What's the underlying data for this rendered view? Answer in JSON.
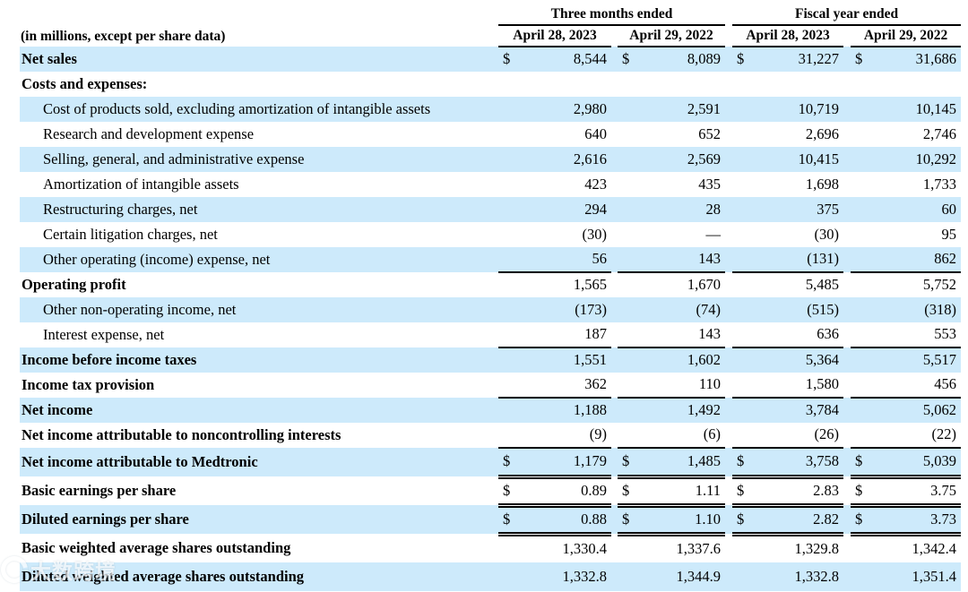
{
  "watermark": {
    "logo": "swirl-ring-icon",
    "text": "大数跨境"
  },
  "table": {
    "currency_symbol": "$",
    "units_note": "(in millions, except per share data)",
    "colors": {
      "stripe": "#cdeafb",
      "rule": "#000000",
      "text": "#000000"
    },
    "col_groups": [
      {
        "label": "Three months ended",
        "cols": [
          "April 28, 2023",
          "April 29, 2022"
        ]
      },
      {
        "label": "Fiscal year ended",
        "cols": [
          "April 28, 2023",
          "April 29, 2022"
        ]
      }
    ],
    "rows": [
      {
        "label": "Net sales",
        "bold": true,
        "indent": false,
        "shaded": true,
        "dollar": true,
        "rule": null,
        "values": [
          "8,544",
          "8,089",
          "31,227",
          "31,686"
        ]
      },
      {
        "label": "Costs and expenses:",
        "bold": true,
        "indent": false,
        "shaded": false,
        "dollar": false,
        "rule": null,
        "values": [
          "",
          "",
          "",
          ""
        ]
      },
      {
        "label": "Cost of products sold, excluding amortization of intangible assets",
        "bold": false,
        "indent": true,
        "shaded": true,
        "dollar": false,
        "rule": null,
        "values": [
          "2,980",
          "2,591",
          "10,719",
          "10,145"
        ]
      },
      {
        "label": "Research and development expense",
        "bold": false,
        "indent": true,
        "shaded": false,
        "dollar": false,
        "rule": null,
        "values": [
          "640",
          "652",
          "2,696",
          "2,746"
        ]
      },
      {
        "label": "Selling, general, and administrative expense",
        "bold": false,
        "indent": true,
        "shaded": true,
        "dollar": false,
        "rule": null,
        "values": [
          "2,616",
          "2,569",
          "10,415",
          "10,292"
        ]
      },
      {
        "label": "Amortization of intangible assets",
        "bold": false,
        "indent": true,
        "shaded": false,
        "dollar": false,
        "rule": null,
        "values": [
          "423",
          "435",
          "1,698",
          "1,733"
        ]
      },
      {
        "label": "Restructuring charges, net",
        "bold": false,
        "indent": true,
        "shaded": true,
        "dollar": false,
        "rule": null,
        "values": [
          "294",
          "28",
          "375",
          "60"
        ]
      },
      {
        "label": "Certain litigation charges, net",
        "bold": false,
        "indent": true,
        "shaded": false,
        "dollar": false,
        "rule": null,
        "values": [
          "(30)",
          "—",
          "(30)",
          "95"
        ]
      },
      {
        "label": "Other operating (income) expense, net",
        "bold": false,
        "indent": true,
        "shaded": true,
        "dollar": false,
        "rule": "single",
        "values": [
          "56",
          "143",
          "(131)",
          "862"
        ]
      },
      {
        "label": "Operating profit",
        "bold": true,
        "indent": false,
        "shaded": false,
        "dollar": false,
        "rule": null,
        "values": [
          "1,565",
          "1,670",
          "5,485",
          "5,752"
        ]
      },
      {
        "label": "Other non-operating income, net",
        "bold": false,
        "indent": true,
        "shaded": true,
        "dollar": false,
        "rule": null,
        "values": [
          "(173)",
          "(74)",
          "(515)",
          "(318)"
        ]
      },
      {
        "label": "Interest expense, net",
        "bold": false,
        "indent": true,
        "shaded": false,
        "dollar": false,
        "rule": "single",
        "values": [
          "187",
          "143",
          "636",
          "553"
        ]
      },
      {
        "label": "Income before income taxes",
        "bold": true,
        "indent": false,
        "shaded": true,
        "dollar": false,
        "rule": null,
        "values": [
          "1,551",
          "1,602",
          "5,364",
          "5,517"
        ]
      },
      {
        "label": "Income tax provision",
        "bold": true,
        "indent": false,
        "shaded": false,
        "dollar": false,
        "rule": "single",
        "values": [
          "362",
          "110",
          "1,580",
          "456"
        ]
      },
      {
        "label": "Net income",
        "bold": true,
        "indent": false,
        "shaded": true,
        "dollar": false,
        "rule": null,
        "values": [
          "1,188",
          "1,492",
          "3,784",
          "5,062"
        ]
      },
      {
        "label": "Net income attributable to noncontrolling interests",
        "bold": true,
        "indent": false,
        "shaded": false,
        "dollar": false,
        "rule": "single",
        "values": [
          "(9)",
          "(6)",
          "(26)",
          "(22)"
        ]
      },
      {
        "label": "Net income attributable to Medtronic",
        "bold": true,
        "indent": false,
        "shaded": true,
        "dollar": true,
        "rule": "double",
        "values": [
          "1,179",
          "1,485",
          "3,758",
          "5,039"
        ]
      },
      {
        "label": "Basic earnings per share",
        "bold": true,
        "indent": false,
        "shaded": false,
        "dollar": true,
        "rule": "double",
        "values": [
          "0.89",
          "1.11",
          "2.83",
          "3.75"
        ]
      },
      {
        "label": "Diluted earnings per share",
        "bold": true,
        "indent": false,
        "shaded": true,
        "dollar": true,
        "rule": "double",
        "values": [
          "0.88",
          "1.10",
          "2.82",
          "3.73"
        ]
      },
      {
        "label": "Basic weighted average shares outstanding",
        "bold": true,
        "indent": false,
        "shaded": false,
        "dollar": false,
        "rule": null,
        "values": [
          "1,330.4",
          "1,337.6",
          "1,329.8",
          "1,342.4"
        ]
      },
      {
        "label": "Diluted weighted average shares outstanding",
        "bold": true,
        "indent": false,
        "shaded": true,
        "dollar": false,
        "rule": null,
        "values": [
          "1,332.8",
          "1,344.9",
          "1,332.8",
          "1,351.4"
        ]
      }
    ]
  }
}
